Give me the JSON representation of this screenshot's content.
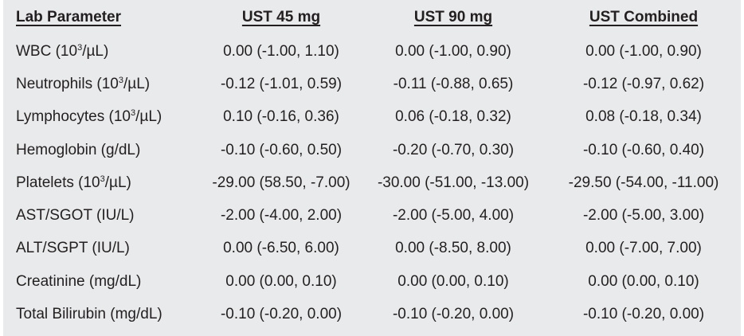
{
  "headers": [
    "Lab Parameter",
    "UST 45 mg",
    "UST 90 mg",
    "UST Combined"
  ],
  "rows": [
    {
      "name": "WBC (10",
      "sup": "3",
      "unit": "/µL)",
      "v": [
        "0.00 (-1.00, 1.10)",
        "0.00 (-1.00, 0.90)",
        "0.00 (-1.00, 0.90)"
      ]
    },
    {
      "name": "Neutrophils (10",
      "sup": "3",
      "unit": "/µL)",
      "v": [
        "-0.12 (-1.01, 0.59)",
        "-0.11 (-0.88, 0.65)",
        "-0.12 (-0.97, 0.62)"
      ]
    },
    {
      "name": "Lymphocytes (10",
      "sup": "3",
      "unit": "/µL)",
      "v": [
        "0.10 (-0.16, 0.36)",
        "0.06 (-0.18, 0.32)",
        "0.08 (-0.18, 0.34)"
      ]
    },
    {
      "name": "Hemoglobin (g/dL)",
      "sup": "",
      "unit": "",
      "v": [
        "-0.10 (-0.60, 0.50)",
        "-0.20 (-0.70, 0.30)",
        "-0.10 (-0.60, 0.40)"
      ]
    },
    {
      "name": "Platelets (10",
      "sup": "3",
      "unit": "/µL)",
      "v": [
        "-29.00 (58.50, -7.00)",
        "-30.00 (-51.00, -13.00)",
        "-29.50 (-54.00, -11.00)"
      ]
    },
    {
      "name": "AST/SGOT (IU/L)",
      "sup": "",
      "unit": "",
      "v": [
        "-2.00 (-4.00, 2.00)",
        "-2.00 (-5.00, 4.00)",
        "-2.00 (-5.00, 3.00)"
      ]
    },
    {
      "name": "ALT/SGPT (IU/L)",
      "sup": "",
      "unit": "",
      "v": [
        "0.00 (-6.50, 6.00)",
        "0.00 (-8.50, 8.00)",
        "0.00 (-7.00, 7.00)"
      ]
    },
    {
      "name": "Creatinine (mg/dL)",
      "sup": "",
      "unit": "",
      "v": [
        "0.00 (0.00, 0.10)",
        "0.00 (0.00, 0.10)",
        "0.00 (0.00, 0.10)"
      ]
    },
    {
      "name": "Total Bilirubin (mg/dL)",
      "sup": "",
      "unit": "",
      "v": [
        "-0.10 (-0.20, 0.00)",
        "-0.10 (-0.20, 0.00)",
        "-0.10 (-0.20, 0.00)"
      ]
    }
  ]
}
